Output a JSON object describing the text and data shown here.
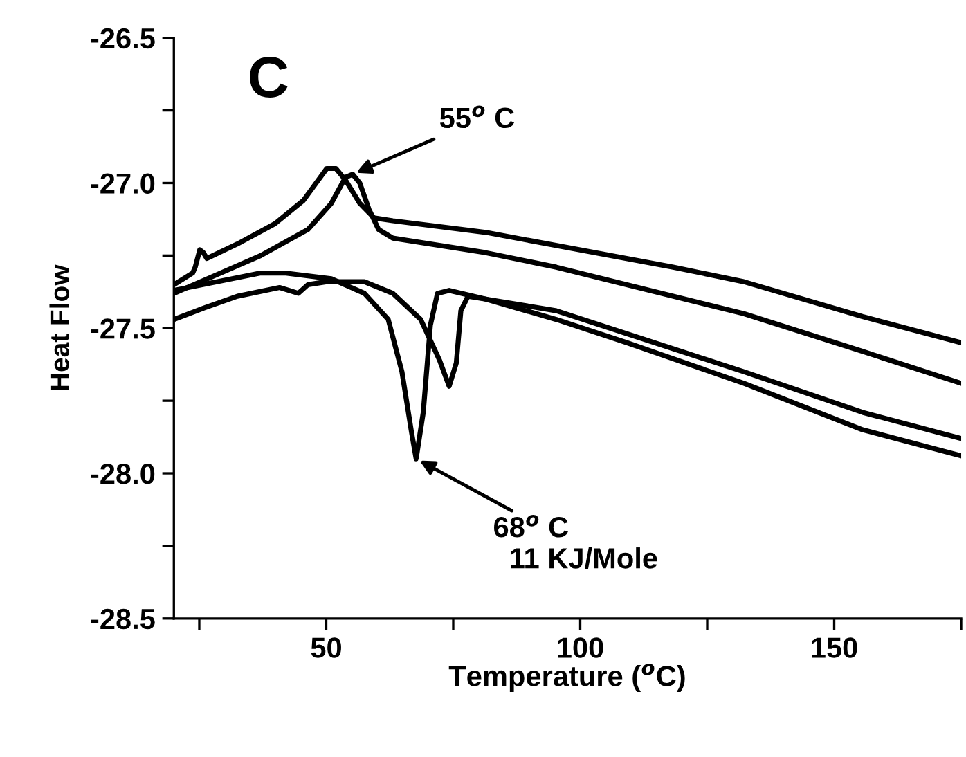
{
  "chart_data": {
    "type": "line",
    "title": "C",
    "xlabel": "Temperature ($^{o}$C)",
    "ylabel": "Heat Flow",
    "xlim": [
      20,
      175
    ],
    "ylim": [
      -28.5,
      -26.5
    ],
    "xticks": [
      {
        "value": 25,
        "label": null
      },
      50,
      {
        "value": 75,
        "label": null
      },
      100,
      {
        "value": 125,
        "label": null
      },
      150,
      {
        "value": 175,
        "label": null
      }
    ],
    "yticks": [
      -28.5,
      {
        "value": -28.25,
        "label": null
      },
      {
        "value": -28.0,
        "label": "-28.0"
      },
      {
        "value": -27.75,
        "label": null
      },
      -27.5,
      {
        "value": -27.25,
        "label": null
      },
      {
        "value": -27.0,
        "label": "-27.0"
      },
      {
        "value": -26.75,
        "label": null
      },
      -26.5
    ],
    "grid": false,
    "legend": false,
    "marker": "none",
    "line_style": "solid",
    "series": [
      {
        "color": "#000000",
        "x": [
          20,
          23.7,
          24.2,
          25.1,
          25.8,
          26.5,
          32.5,
          39.9,
          45.5,
          50.1,
          51.9,
          53.8,
          56.6,
          59.4,
          63.1,
          81.4,
          90.6,
          118.3,
          132.2,
          155.6,
          175
        ],
        "values": [
          -27.35,
          -27.31,
          -27.29,
          -27.23,
          -27.24,
          -27.26,
          -27.21,
          -27.14,
          -27.06,
          -26.95,
          -26.95,
          -26.99,
          -27.07,
          -27.12,
          -27.13,
          -27.17,
          -27.2,
          -27.29,
          -27.34,
          -27.46,
          -27.55
        ]
      },
      {
        "color": "#000000",
        "x": [
          20,
          27.9,
          37.1,
          46.4,
          51.0,
          53.8,
          55.2,
          56.6,
          58.4,
          60.3,
          63.1,
          81.4,
          95.3,
          132.2,
          155.6,
          175
        ],
        "values": [
          -27.38,
          -27.32,
          -27.25,
          -27.16,
          -27.07,
          -26.98,
          -26.97,
          -27.0,
          -27.09,
          -27.16,
          -27.19,
          -27.24,
          -27.29,
          -27.45,
          -27.58,
          -27.69
        ]
      },
      {
        "color": "#000000",
        "x": [
          20,
          37.1,
          41.8,
          51.0,
          57.5,
          62.2,
          64.9,
          66.8,
          67.7,
          69.1,
          70.5,
          71.9,
          74.2,
          81.4,
          95.3,
          109.2,
          132.2,
          155.6,
          175
        ],
        "values": [
          -27.37,
          -27.31,
          -27.31,
          -27.33,
          -27.38,
          -27.47,
          -27.65,
          -27.86,
          -27.95,
          -27.79,
          -27.49,
          -27.38,
          -27.37,
          -27.4,
          -27.47,
          -27.55,
          -27.69,
          -27.85,
          -27.94
        ]
      },
      {
        "color": "#000000",
        "x": [
          20,
          26.0,
          32.5,
          40.8,
          42.7,
          44.5,
          46.4,
          50.1,
          57.5,
          63.1,
          68.6,
          72.3,
          74.2,
          75.6,
          76.5,
          77.9,
          81.4,
          95.3,
          132.2,
          155.6,
          175
        ],
        "values": [
          -27.47,
          -27.43,
          -27.39,
          -27.36,
          -27.37,
          -27.38,
          -27.35,
          -27.34,
          -27.34,
          -27.38,
          -27.47,
          -27.61,
          -27.7,
          -27.62,
          -27.44,
          -27.39,
          -27.4,
          -27.44,
          -27.65,
          -27.79,
          -27.88
        ]
      }
    ],
    "annotations": [
      {
        "text": "55$^{o}$ C",
        "x": 55.2,
        "y": -26.97
      },
      {
        "text": "68$^{o}$ C\n  11 KJ/Mole",
        "x": 67.7,
        "y": -27.95
      }
    ]
  }
}
